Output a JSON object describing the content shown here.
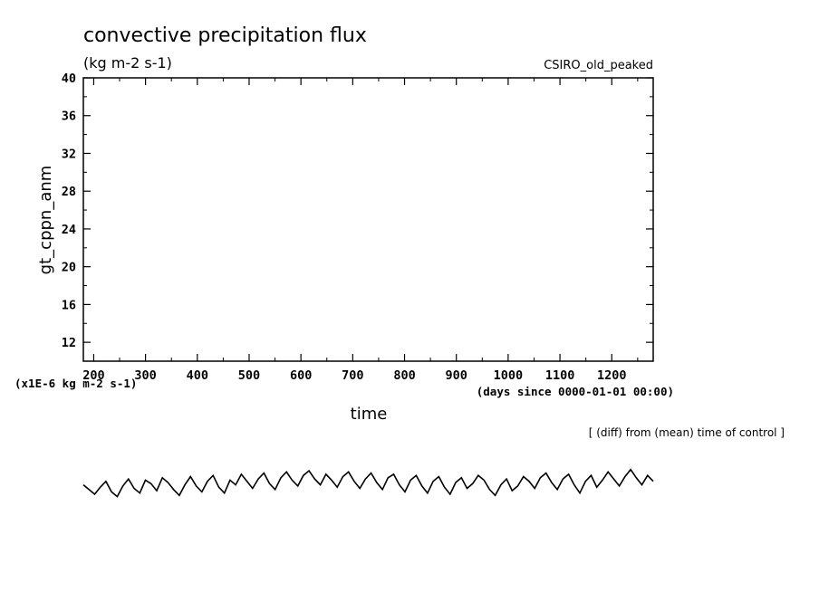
{
  "chart_data": {
    "type": "line",
    "title": "convective precipitation flux",
    "units": "(kg m-2 s-1)",
    "model_label": "CSIRO_old_peaked",
    "ylabel": "gt_cppn_anm",
    "xlabel": "time",
    "x_units": "(days since 0000-01-01 00:00)",
    "y_multiplier": "(x1E-6 kg m-2 s-1)",
    "note": "[ (diff) from (mean) time of control ]",
    "xlim": [
      180,
      1280
    ],
    "ylim": [
      10,
      40
    ],
    "x_ticks": [
      200,
      300,
      400,
      500,
      600,
      700,
      800,
      900,
      1000,
      1100,
      1200
    ],
    "y_ticks": [
      12,
      16,
      20,
      24,
      28,
      32,
      36,
      40
    ],
    "grid": false,
    "series": [
      {
        "values_start": 180,
        "values_end": 1280,
        "values": [
          -0.2,
          -0.6,
          -1.0,
          -0.4,
          0.1,
          -0.8,
          -1.2,
          -0.3,
          0.3,
          -0.5,
          -0.9,
          0.2,
          -0.1,
          -0.7,
          0.4,
          0.0,
          -0.6,
          -1.1,
          -0.2,
          0.5,
          -0.3,
          -0.8,
          0.1,
          0.6,
          -0.4,
          -0.9,
          0.2,
          -0.2,
          0.7,
          0.1,
          -0.5,
          0.3,
          0.8,
          -0.1,
          -0.6,
          0.4,
          0.9,
          0.2,
          -0.3,
          0.6,
          1.0,
          0.3,
          -0.2,
          0.7,
          0.2,
          -0.4,
          0.5,
          0.9,
          0.1,
          -0.5,
          0.3,
          0.8,
          0.0,
          -0.6,
          0.4,
          0.7,
          -0.2,
          -0.8,
          0.2,
          0.6,
          -0.3,
          -0.9,
          0.1,
          0.5,
          -0.4,
          -1.0,
          0.0,
          0.4,
          -0.5,
          -0.1,
          0.6,
          0.2,
          -0.6,
          -1.1,
          -0.2,
          0.3,
          -0.7,
          -0.3,
          0.5,
          0.1,
          -0.5,
          0.4,
          0.8,
          0.0,
          -0.6,
          0.3,
          0.7,
          -0.2,
          -0.9,
          0.1,
          0.6,
          -0.4,
          0.2,
          0.9,
          0.3,
          -0.3,
          0.5,
          1.1,
          0.4,
          -0.2,
          0.6,
          0.1
        ]
      }
    ]
  }
}
